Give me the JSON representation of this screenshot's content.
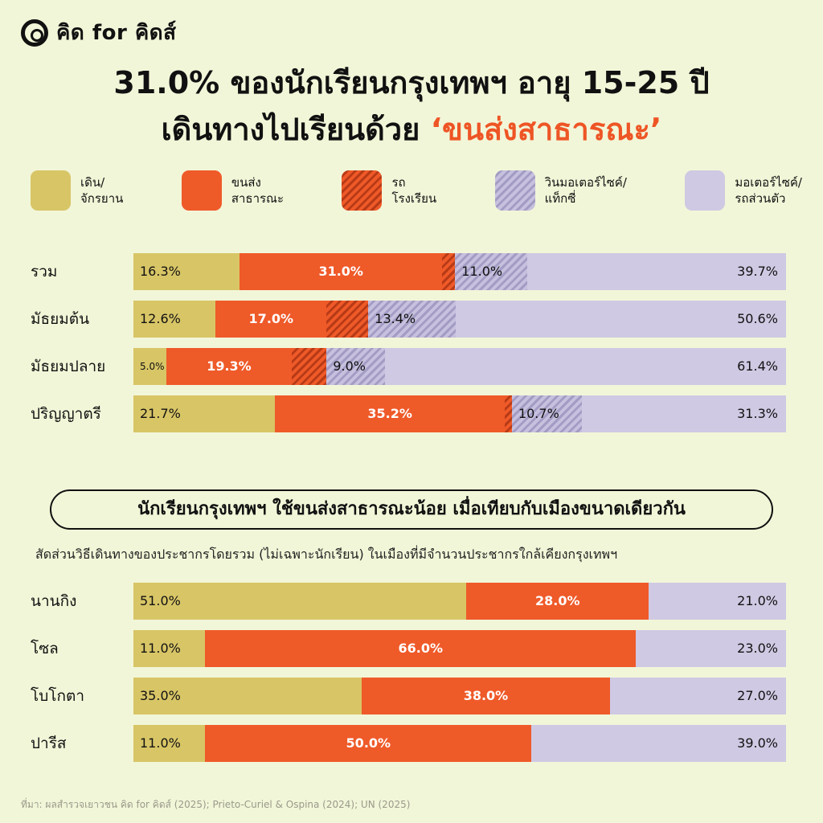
{
  "brand": {
    "logo_text": "คิด for คิดส์"
  },
  "title": {
    "line1": "31.0% ของนักเรียนกรุงเทพฯ อายุ 15-25 ปี",
    "line2_prefix": "เดินทางไปเรียนด้วย ",
    "line2_accent": "‘ขนส่งสาธารณะ’"
  },
  "legend": [
    {
      "label": "เดิน/\nจักรยาน",
      "icon": "bicycle-icon",
      "color": "#d8c566"
    },
    {
      "label": "ขนส่ง\nสาธารณะ",
      "icon": "bus-icon",
      "color": "#ef5a29"
    },
    {
      "label": "รถ\nโรงเรียน",
      "icon": "school-bus-icon",
      "color": "#ef5a29",
      "pattern": "hatched"
    },
    {
      "label": "วินมอเตอร์ไซค์/\nแท็กซี่",
      "icon": "taxi-icon",
      "color": "#c7c0de",
      "pattern": "hatched"
    },
    {
      "label": "มอเตอร์ไซค์/\nรถส่วนตัว",
      "icon": "car-icon",
      "color": "#cfc9e3"
    }
  ],
  "subheading": "นักเรียนกรุงเทพฯ ใช้ขนส่งสาธารณะน้อย เมื่อเทียบกับเมืองขนาดเดียวกัน",
  "subnote": "สัดส่วนวิธีเดินทางของประชากรโดยรวม (ไม่เฉพาะนักเรียน) ในเมืองที่มีจำนวนประชากรใกล้เคียงกรุงเทพฯ",
  "source": "ที่มา: ผลสำรวจเยาวชน คิด for คิดส์ (2025); Prieto-Curiel & Ospina (2024); UN (2025)",
  "chart_data": [
    {
      "type": "bar",
      "stacked": true,
      "orientation": "horizontal",
      "categories": [
        "รวม",
        "มัธยมต้น",
        "มัธยมปลาย",
        "ปริญญาตรี"
      ],
      "series": [
        {
          "name": "เดิน/จักรยาน",
          "values": [
            16.3,
            12.6,
            5.0,
            21.7
          ],
          "labels": [
            "16.3%",
            "12.6%",
            "5.0%",
            "21.7%"
          ],
          "cls": "walk",
          "color": "#d8c566"
        },
        {
          "name": "ขนส่งสาธารณะ",
          "values": [
            31.0,
            17.0,
            19.3,
            35.2
          ],
          "labels": [
            "31.0%",
            "17.0%",
            "19.3%",
            "35.2%"
          ],
          "cls": "pub",
          "color": "#ef5a29"
        },
        {
          "name": "รถโรงเรียน",
          "values": [
            2.0,
            6.4,
            5.3,
            1.1
          ],
          "labels": [
            "",
            "",
            "",
            ""
          ],
          "cls": "bus",
          "color": "#ef5a29"
        },
        {
          "name": "วินมอเตอร์ไซค์/แท็กซี่",
          "values": [
            11.0,
            13.4,
            9.0,
            10.7
          ],
          "labels": [
            "11.0%",
            "13.4%",
            "9.0%",
            "10.7%"
          ],
          "cls": "taxi",
          "color": "#c7c0de"
        },
        {
          "name": "มอเตอร์ไซค์/รถส่วนตัว",
          "values": [
            39.7,
            50.6,
            61.4,
            31.3
          ],
          "labels": [
            "39.7%",
            "50.6%",
            "61.4%",
            "31.3%"
          ],
          "cls": "car",
          "color": "#cfc9e3"
        }
      ]
    },
    {
      "type": "bar",
      "stacked": true,
      "orientation": "horizontal",
      "categories": [
        "นานกิง",
        "โซล",
        "โบโกตา",
        "ปารีส"
      ],
      "series": [
        {
          "name": "เดิน/จักรยาน",
          "values": [
            51.0,
            11.0,
            35.0,
            11.0
          ],
          "labels": [
            "51.0%",
            "11.0%",
            "35.0%",
            "11.0%"
          ],
          "cls": "walk",
          "color": "#d8c566"
        },
        {
          "name": "ขนส่งสาธารณะ",
          "values": [
            28.0,
            66.0,
            38.0,
            50.0
          ],
          "labels": [
            "28.0%",
            "66.0%",
            "38.0%",
            "50.0%"
          ],
          "cls": "pub",
          "color": "#ef5a29"
        },
        {
          "name": "มอเตอร์ไซค์/รถส่วนตัว",
          "values": [
            21.0,
            23.0,
            27.0,
            39.0
          ],
          "labels": [
            "21.0%",
            "23.0%",
            "27.0%",
            "39.0%"
          ],
          "cls": "car",
          "color": "#cfc9e3"
        }
      ]
    }
  ]
}
